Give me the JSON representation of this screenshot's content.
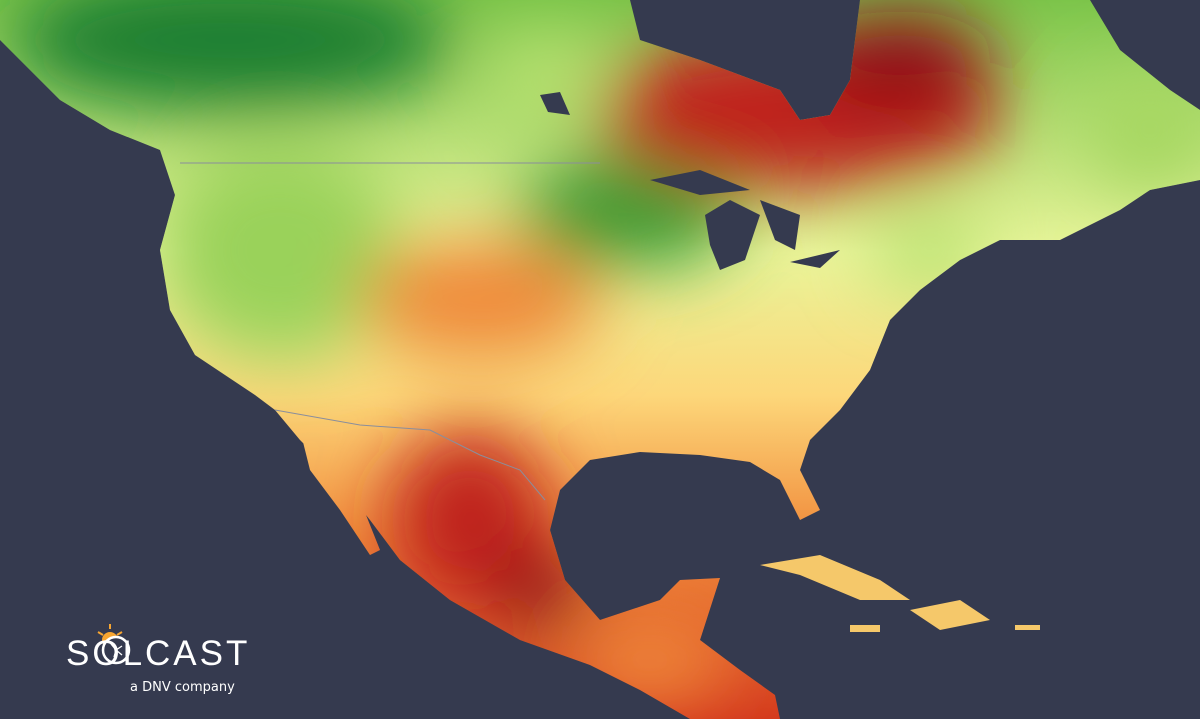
{
  "map": {
    "region": "North America",
    "background_color": "#353a4f",
    "color_scale": [
      "#0f6b2a",
      "#7cc54a",
      "#e9f59a",
      "#fdd77a",
      "#f7883a",
      "#d43a1e",
      "#8e0f12"
    ]
  },
  "logo": {
    "wordmark": "SOLCAST",
    "tagline": "a DNV company",
    "sun_color": "#f7a531"
  }
}
